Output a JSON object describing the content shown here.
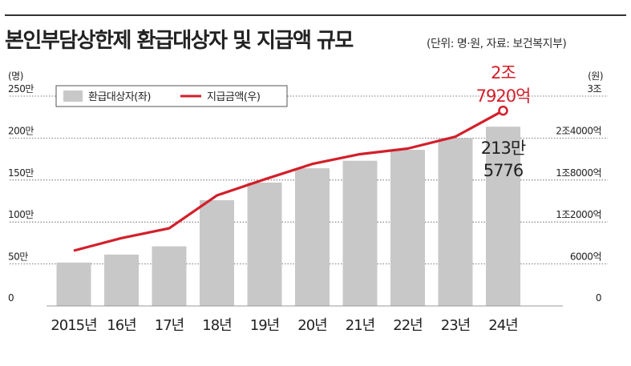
{
  "chart_data": {
    "type": "bar+line",
    "title": "본인부담상한제 환급대상자 및 지급액 규모",
    "subtitle": "(단위: 명·원, 자료: 보건복지부)",
    "left_axis_unit": "(명)",
    "right_axis_unit": "(원)",
    "categories": [
      "2015년",
      "16년",
      "17년",
      "18년",
      "19년",
      "20년",
      "21년",
      "22년",
      "23년",
      "24년"
    ],
    "left_ylim": [
      0,
      2500000
    ],
    "left_ticks": [
      {
        "value": 0,
        "label": "0"
      },
      {
        "value": 500000,
        "label": "50만"
      },
      {
        "value": 1000000,
        "label": "100만"
      },
      {
        "value": 1500000,
        "label": "150만"
      },
      {
        "value": 2000000,
        "label": "200만"
      },
      {
        "value": 2500000,
        "label": "250만"
      }
    ],
    "right_ylim": [
      0,
      3000000000000
    ],
    "right_ticks": [
      {
        "value": 0,
        "label": "0"
      },
      {
        "value": 600000000000,
        "label": "6000억"
      },
      {
        "value": 1200000000000,
        "label": "1조2000억"
      },
      {
        "value": 1800000000000,
        "label": "1조8000억"
      },
      {
        "value": 2400000000000,
        "label": "2조4000억"
      },
      {
        "value": 3000000000000,
        "label": "3조"
      }
    ],
    "series": [
      {
        "name": "환급대상자(좌)",
        "kind": "bar",
        "axis": "left",
        "color": "#c8c8c8",
        "values": [
          517000,
          612000,
          710000,
          1260000,
          1470000,
          1640000,
          1730000,
          1860000,
          2000000,
          2135776
        ]
      },
      {
        "name": "지급금액(우)",
        "kind": "line",
        "axis": "right",
        "color": "#d31f2a",
        "values": [
          790000000000,
          970000000000,
          1110000000000,
          1580000000000,
          1810000000000,
          2030000000000,
          2170000000000,
          2250000000000,
          2420000000000,
          2792000000000
        ]
      }
    ],
    "annotations": [
      {
        "series": "환급대상자(좌)",
        "index": 9,
        "lines": [
          "213만",
          "5776"
        ],
        "color": "#222222"
      },
      {
        "series": "지급금액(우)",
        "index": 9,
        "lines": [
          "2조",
          "7920억"
        ],
        "color": "#d31f2a"
      }
    ]
  }
}
